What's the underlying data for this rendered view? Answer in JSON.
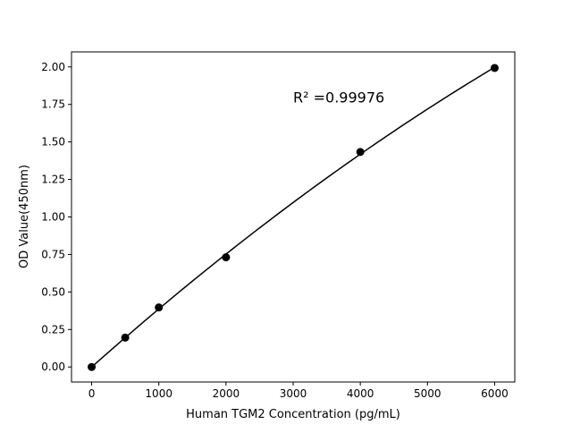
{
  "chart_data": {
    "type": "scatter",
    "title": "",
    "xlabel": "Human TGM2 Concentration (pg/mL)",
    "ylabel": "OD Value(450nm)",
    "xlim": [
      -300,
      6300
    ],
    "ylim": [
      -0.1,
      2.1
    ],
    "xticks": [
      0,
      1000,
      2000,
      3000,
      4000,
      5000,
      6000
    ],
    "xtick_labels": [
      "0",
      "1000",
      "2000",
      "3000",
      "4000",
      "5000",
      "6000"
    ],
    "yticks": [
      0,
      0.25,
      0.5,
      0.75,
      1.0,
      1.25,
      1.5,
      1.75,
      2.0
    ],
    "ytick_labels": [
      "0.00",
      "0.25",
      "0.50",
      "0.75",
      "1.00",
      "1.25",
      "1.50",
      "1.75",
      "2.00"
    ],
    "grid": false,
    "series": [
      {
        "x": [
          0,
          500,
          1000,
          2000,
          4000,
          6000
        ],
        "y": [
          0.0,
          0.196,
          0.397,
          0.731,
          1.433,
          1.993
        ],
        "marker": "circle",
        "color": "#000000",
        "fit": "quadratic curve"
      }
    ],
    "annotations": [
      {
        "text": "R² =0.99976",
        "x": 3000,
        "y": 1.8
      }
    ]
  }
}
